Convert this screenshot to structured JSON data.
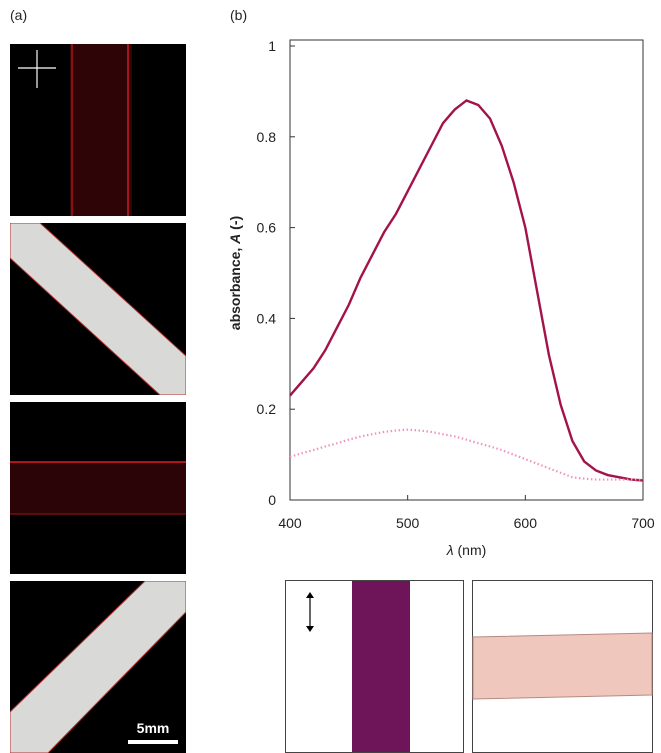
{
  "panel_a_label": "(a)",
  "panel_b_label": "(b)",
  "scale_bar_label": "5mm",
  "chart_data": {
    "type": "line",
    "ylabel": [
      "absorbance, ",
      "A",
      " (-)"
    ],
    "xlabel": [
      "λ",
      " (nm)"
    ],
    "xlim": [
      400,
      700
    ],
    "xticks": [
      400,
      500,
      600,
      700
    ],
    "ylim": [
      0,
      1
    ],
    "yticks": [
      0,
      0.2,
      0.4,
      0.6,
      0.8,
      1
    ],
    "x": [
      400,
      410,
      420,
      430,
      440,
      450,
      460,
      470,
      480,
      490,
      500,
      510,
      520,
      530,
      540,
      550,
      560,
      570,
      580,
      590,
      600,
      610,
      620,
      630,
      640,
      650,
      660,
      670,
      680,
      690,
      700
    ],
    "series": [
      {
        "color": "#a3134a",
        "dash": "solid",
        "values": [
          0.23,
          0.26,
          0.29,
          0.33,
          0.38,
          0.43,
          0.49,
          0.54,
          0.59,
          0.63,
          0.68,
          0.73,
          0.78,
          0.83,
          0.86,
          0.88,
          0.87,
          0.84,
          0.78,
          0.7,
          0.6,
          0.46,
          0.32,
          0.21,
          0.13,
          0.085,
          0.065,
          0.055,
          0.05,
          0.045,
          0.043
        ]
      },
      {
        "color": "#f291c0",
        "dash": "dotted",
        "values": [
          0.095,
          0.103,
          0.11,
          0.118,
          0.125,
          0.133,
          0.14,
          0.145,
          0.15,
          0.153,
          0.155,
          0.153,
          0.15,
          0.145,
          0.14,
          0.133,
          0.125,
          0.118,
          0.11,
          0.1,
          0.09,
          0.08,
          0.07,
          0.06,
          0.05,
          0.047,
          0.045,
          0.045,
          0.045,
          0.045,
          0.045
        ]
      }
    ]
  }
}
